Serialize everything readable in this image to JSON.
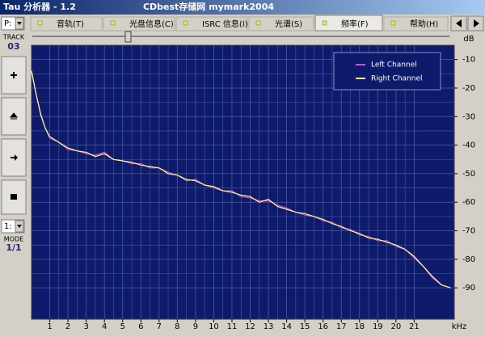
{
  "window": {
    "title": "Tau 分析器 - 1.2",
    "subtitle": "CDbest存储网 mymark2004"
  },
  "drive": "P:",
  "tabs": [
    "音轨(T)",
    "光盘信息(C)",
    "ISRC 信息(I)",
    "光谱(S)",
    "频率(F)",
    "帮助(H)"
  ],
  "selected_tab": 4,
  "sidebar": {
    "track_label": "TRACK",
    "track": "03",
    "mode_select": "1:",
    "mode_label": "MODE",
    "mode": "1/1"
  },
  "chart_data": {
    "type": "line",
    "x_label": "kHz",
    "y_label": "dB",
    "x": [
      0,
      0.25,
      0.5,
      0.75,
      1,
      1.5,
      2,
      2.5,
      3,
      3.5,
      4,
      4.5,
      5,
      5.5,
      6,
      6.5,
      7,
      7.5,
      8,
      8.5,
      9,
      9.5,
      10,
      10.5,
      11,
      11.5,
      12,
      12.5,
      13,
      13.5,
      14,
      14.5,
      15,
      15.5,
      16,
      16.5,
      17,
      17.5,
      18,
      18.5,
      19,
      19.5,
      20,
      20.5,
      21,
      21.5,
      22,
      22.5,
      23
    ],
    "series": [
      {
        "name": "Left Channel",
        "color": "#d050e0",
        "values": [
          -14.5,
          -22,
          -29.5,
          -34,
          -37.5,
          -39,
          -41.5,
          -42,
          -43,
          -43.5,
          -42.5,
          -45,
          -45.5,
          -46.5,
          -46.5,
          -48,
          -48,
          -49.5,
          -50.5,
          -52.5,
          -52,
          -54,
          -55,
          -56,
          -56,
          -58,
          -58.5,
          -59.5,
          -59.5,
          -61,
          -62,
          -63.5,
          -64.5,
          -65,
          -66.5,
          -67,
          -69,
          -69.5,
          -71.5,
          -72,
          -73.5,
          -73.5,
          -75.5,
          -76.5,
          -79.5,
          -82.5,
          -86.5,
          -89,
          -90
        ]
      },
      {
        "name": "Right Channel",
        "color": "#ffff80",
        "values": [
          -14,
          -22,
          -29,
          -34,
          -37,
          -39,
          -41,
          -42,
          -42.5,
          -44,
          -43,
          -45,
          -45.5,
          -46,
          -47,
          -47.5,
          -48,
          -50,
          -50.5,
          -52,
          -52.5,
          -54,
          -54.5,
          -56,
          -56.5,
          -57.5,
          -58,
          -60,
          -59,
          -61.5,
          -62.5,
          -63.5,
          -64,
          -65,
          -66,
          -67.5,
          -68.5,
          -70,
          -71,
          -72.5,
          -73,
          -74,
          -75,
          -76.5,
          -79,
          -82.5,
          -86,
          -89,
          -90
        ]
      }
    ],
    "xlim": [
      0,
      23.2
    ],
    "ylim": [
      -101,
      -5
    ],
    "xticks": [
      1,
      2,
      3,
      4,
      5,
      6,
      7,
      8,
      9,
      10,
      11,
      12,
      13,
      14,
      15,
      16,
      17,
      18,
      19,
      20,
      21
    ],
    "yticks": [
      -10,
      -20,
      -30,
      -40,
      -50,
      -60,
      -70,
      -80,
      -90
    ],
    "grid": true,
    "minor_grid": true,
    "legend": "upper right",
    "background": "#0e1a6c",
    "grid_color": "#4c5c9e"
  }
}
